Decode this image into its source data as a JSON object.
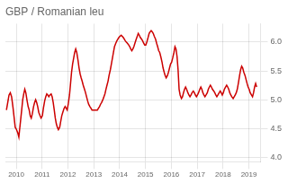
{
  "chart_data": {
    "type": "line",
    "title": "GBP / Romanian leu",
    "color": "#cc0000",
    "grid": true,
    "xlim": [
      2009.58,
      2019.45
    ],
    "ylim": [
      3.92,
      6.32
    ],
    "xticks": [
      2010,
      2011,
      2012,
      2013,
      2014,
      2015,
      2016,
      2017,
      2018,
      2019
    ],
    "yticks": [
      {
        "value": 4.0,
        "label": "4.0"
      },
      4.5,
      {
        "value": 5.0,
        "label": "5.0"
      },
      5.5,
      {
        "value": 6.0,
        "label": "6.0"
      }
    ],
    "x": [
      2009.62,
      2009.67,
      2009.72,
      2009.77,
      2009.82,
      2009.87,
      2009.92,
      2009.96,
      2010.01,
      2010.06,
      2010.1,
      2010.13,
      2010.17,
      2010.21,
      2010.25,
      2010.29,
      2010.33,
      2010.37,
      2010.42,
      2010.46,
      2010.5,
      2010.54,
      2010.58,
      2010.62,
      2010.67,
      2010.71,
      2010.75,
      2010.79,
      2010.83,
      2010.87,
      2010.92,
      2010.96,
      2011.01,
      2011.05,
      2011.1,
      2011.14,
      2011.18,
      2011.22,
      2011.26,
      2011.3,
      2011.35,
      2011.39,
      2011.43,
      2011.47,
      2011.51,
      2011.55,
      2011.59,
      2011.63,
      2011.68,
      2011.72,
      2011.76,
      2011.8,
      2011.85,
      2011.89,
      2011.93,
      2011.97,
      2012.01,
      2012.06,
      2012.1,
      2012.14,
      2012.18,
      2012.22,
      2012.26,
      2012.3,
      2012.34,
      2012.39,
      2012.43,
      2012.47,
      2012.51,
      2012.55,
      2012.59,
      2012.64,
      2012.68,
      2012.72,
      2012.76,
      2012.8,
      2012.85,
      2012.89,
      2012.93,
      2012.97,
      2013.01,
      2013.06,
      2013.1,
      2013.14,
      2013.18,
      2013.22,
      2013.26,
      2013.3,
      2013.35,
      2013.39,
      2013.43,
      2013.47,
      2013.51,
      2013.55,
      2013.59,
      2013.64,
      2013.68,
      2013.72,
      2013.76,
      2013.8,
      2013.85,
      2013.89,
      2013.93,
      2013.97,
      2014.01,
      2014.06,
      2014.1,
      2014.14,
      2014.18,
      2014.22,
      2014.26,
      2014.3,
      2014.35,
      2014.39,
      2014.43,
      2014.47,
      2014.51,
      2014.55,
      2014.59,
      2014.64,
      2014.68,
      2014.72,
      2014.76,
      2014.8,
      2014.85,
      2014.89,
      2014.93,
      2014.97,
      2015.01,
      2015.05,
      2015.1,
      2015.14,
      2015.18,
      2015.22,
      2015.26,
      2015.3,
      2015.34,
      2015.39,
      2015.43,
      2015.47,
      2015.51,
      2015.55,
      2015.59,
      2015.64,
      2015.68,
      2015.72,
      2015.76,
      2015.8,
      2015.85,
      2015.89,
      2015.93,
      2015.97,
      2016.01,
      2016.05,
      2016.1,
      2016.14,
      2016.18,
      2016.22,
      2016.26,
      2016.3,
      2016.34,
      2016.39,
      2016.43,
      2016.47,
      2016.51,
      2016.55,
      2016.59,
      2016.64,
      2016.68,
      2016.72,
      2016.76,
      2016.8,
      2016.85,
      2016.89,
      2016.93,
      2016.97,
      2017.01,
      2017.05,
      2017.1,
      2017.14,
      2017.18,
      2017.22,
      2017.26,
      2017.3,
      2017.34,
      2017.39,
      2017.43,
      2017.47,
      2017.51,
      2017.55,
      2017.59,
      2017.64,
      2017.68,
      2017.72,
      2017.76,
      2017.8,
      2017.85,
      2017.89,
      2017.93,
      2017.97,
      2018.01,
      2018.05,
      2018.1,
      2018.14,
      2018.18,
      2018.22,
      2018.26,
      2018.3,
      2018.34,
      2018.39,
      2018.43,
      2018.47,
      2018.51,
      2018.55,
      2018.59,
      2018.64,
      2018.68,
      2018.72,
      2018.76,
      2018.8,
      2018.85,
      2018.89,
      2018.93,
      2018.97,
      2019.01,
      2019.05,
      2019.1,
      2019.14,
      2019.18,
      2019.22,
      2019.26,
      2019.3
    ],
    "values": [
      4.82,
      4.95,
      5.08,
      5.12,
      5.05,
      4.88,
      4.68,
      4.52,
      4.48,
      4.42,
      4.35,
      4.48,
      4.65,
      4.82,
      5.0,
      5.1,
      5.18,
      5.12,
      4.98,
      4.88,
      4.82,
      4.72,
      4.68,
      4.75,
      4.88,
      4.95,
      5.0,
      4.95,
      4.88,
      4.78,
      4.72,
      4.68,
      4.72,
      4.85,
      4.98,
      5.05,
      5.1,
      5.08,
      5.05,
      5.08,
      5.1,
      5.05,
      4.95,
      4.82,
      4.68,
      4.58,
      4.52,
      4.48,
      4.52,
      4.62,
      4.72,
      4.78,
      4.85,
      4.88,
      4.85,
      4.82,
      4.92,
      5.08,
      5.28,
      5.48,
      5.62,
      5.72,
      5.82,
      5.88,
      5.82,
      5.68,
      5.55,
      5.45,
      5.38,
      5.32,
      5.25,
      5.18,
      5.12,
      5.05,
      4.98,
      4.92,
      4.88,
      4.85,
      4.82,
      4.82,
      4.82,
      4.82,
      4.82,
      4.82,
      4.85,
      4.88,
      4.92,
      4.95,
      5.0,
      5.05,
      5.1,
      5.18,
      5.25,
      5.32,
      5.42,
      5.52,
      5.62,
      5.72,
      5.82,
      5.92,
      5.98,
      6.02,
      6.05,
      6.08,
      6.1,
      6.12,
      6.1,
      6.08,
      6.05,
      6.02,
      6.0,
      5.98,
      5.95,
      5.92,
      5.88,
      5.85,
      5.88,
      5.92,
      5.98,
      6.05,
      6.1,
      6.15,
      6.12,
      6.08,
      6.05,
      6.02,
      5.98,
      5.95,
      5.95,
      6.0,
      6.08,
      6.15,
      6.18,
      6.2,
      6.18,
      6.15,
      6.1,
      6.05,
      5.98,
      5.92,
      5.85,
      5.82,
      5.75,
      5.65,
      5.55,
      5.48,
      5.42,
      5.38,
      5.42,
      5.48,
      5.55,
      5.62,
      5.65,
      5.72,
      5.82,
      5.92,
      5.88,
      5.75,
      5.52,
      5.18,
      5.08,
      5.02,
      5.05,
      5.12,
      5.18,
      5.22,
      5.18,
      5.12,
      5.08,
      5.05,
      5.08,
      5.12,
      5.15,
      5.12,
      5.08,
      5.05,
      5.08,
      5.12,
      5.18,
      5.22,
      5.18,
      5.12,
      5.08,
      5.05,
      5.08,
      5.12,
      5.18,
      5.22,
      5.25,
      5.22,
      5.18,
      5.15,
      5.12,
      5.08,
      5.05,
      5.08,
      5.12,
      5.15,
      5.12,
      5.08,
      5.12,
      5.18,
      5.22,
      5.25,
      5.22,
      5.18,
      5.12,
      5.08,
      5.05,
      5.02,
      5.05,
      5.08,
      5.12,
      5.18,
      5.28,
      5.42,
      5.52,
      5.58,
      5.55,
      5.48,
      5.42,
      5.35,
      5.28,
      5.22,
      5.18,
      5.12,
      5.08,
      5.05,
      5.12,
      5.22,
      5.28,
      5.22
    ]
  }
}
